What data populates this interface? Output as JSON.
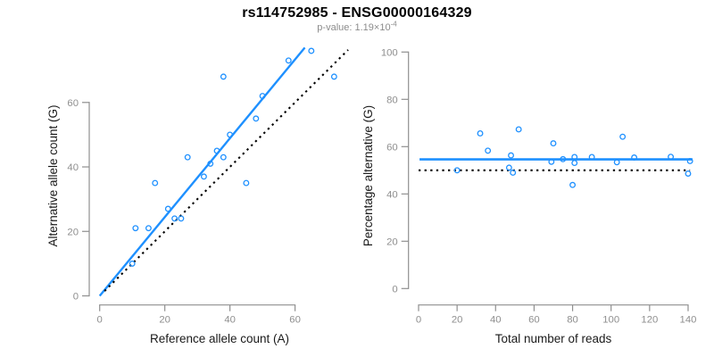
{
  "header": {
    "title": "rs114752985 - ENSG00000164329",
    "pvalue_text": "p-value: 1.19×10",
    "pvalue_exponent": "-4"
  },
  "colors": {
    "accent_blue": "#1E90FF",
    "line_black": "#000000",
    "axis_gray": "#8f8f8f",
    "axis_title_dark": "#1a1a1a",
    "subtitle_gray": "#8c8c8c"
  },
  "chart_data": [
    {
      "type": "scatter",
      "panel": "left",
      "xlabel": "Reference allele count (A)",
      "ylabel": "Alternative allele count (G)",
      "xlim": [
        0,
        77
      ],
      "ylim": [
        0,
        78
      ],
      "xticks": [
        0,
        20,
        40,
        60
      ],
      "yticks": [
        0,
        20,
        40,
        60
      ],
      "grid": false,
      "legend": "none",
      "point_style": "open-circle",
      "point_color": "#1E90FF",
      "points": [
        [
          10,
          10
        ],
        [
          11,
          21
        ],
        [
          15,
          21
        ],
        [
          17,
          35
        ],
        [
          21,
          27
        ],
        [
          23,
          24
        ],
        [
          25,
          24
        ],
        [
          27,
          43
        ],
        [
          32,
          37
        ],
        [
          34,
          41
        ],
        [
          36,
          45
        ],
        [
          38,
          43
        ],
        [
          38,
          68
        ],
        [
          40,
          50
        ],
        [
          45,
          35
        ],
        [
          48,
          55
        ],
        [
          50,
          62
        ],
        [
          58,
          73
        ],
        [
          65,
          76
        ],
        [
          72,
          68
        ]
      ],
      "lines": [
        {
          "name": "regression-line",
          "style": "solid",
          "color": "#1E90FF",
          "width": 2.4,
          "x1": 0,
          "y1": 0,
          "x2": 63,
          "y2": 77
        },
        {
          "name": "identity-line",
          "style": "dotted",
          "color": "#000000",
          "width": 2.1,
          "x1": 1.5,
          "y1": 1.5,
          "x2": 76.3,
          "y2": 76.3
        }
      ]
    },
    {
      "type": "scatter",
      "panel": "right",
      "xlabel": "Total number of reads",
      "ylabel": "Percentage alternative (G)",
      "xlim": [
        0,
        143
      ],
      "ylim": [
        0,
        100
      ],
      "xticks": [
        0,
        20,
        40,
        60,
        80,
        100,
        120,
        140
      ],
      "yticks": [
        0,
        20,
        40,
        60,
        80,
        100
      ],
      "grid": false,
      "legend": "none",
      "point_style": "open-circle",
      "point_color": "#1E90FF",
      "points": [
        [
          20,
          50.0
        ],
        [
          32,
          65.6
        ],
        [
          36,
          58.3
        ],
        [
          47,
          51.1
        ],
        [
          48,
          56.3
        ],
        [
          49,
          49.0
        ],
        [
          52,
          67.3
        ],
        [
          69,
          53.6
        ],
        [
          70,
          61.4
        ],
        [
          75,
          54.7
        ],
        [
          80,
          43.8
        ],
        [
          81,
          55.6
        ],
        [
          81,
          53.1
        ],
        [
          90,
          55.6
        ],
        [
          103,
          53.4
        ],
        [
          106,
          64.2
        ],
        [
          112,
          55.4
        ],
        [
          131,
          55.7
        ],
        [
          140,
          48.6
        ],
        [
          141,
          53.9
        ]
      ],
      "lines": [
        {
          "name": "mean-percentage-line",
          "style": "solid",
          "color": "#1E90FF",
          "width": 2.6,
          "x1": 0.5,
          "y1": 54.6,
          "x2": 142.3,
          "y2": 54.6
        },
        {
          "name": "null-50pct-line",
          "style": "dotted",
          "color": "#000000",
          "width": 2.1,
          "x1": 0,
          "y1": 50,
          "x2": 141,
          "y2": 50
        }
      ]
    }
  ]
}
